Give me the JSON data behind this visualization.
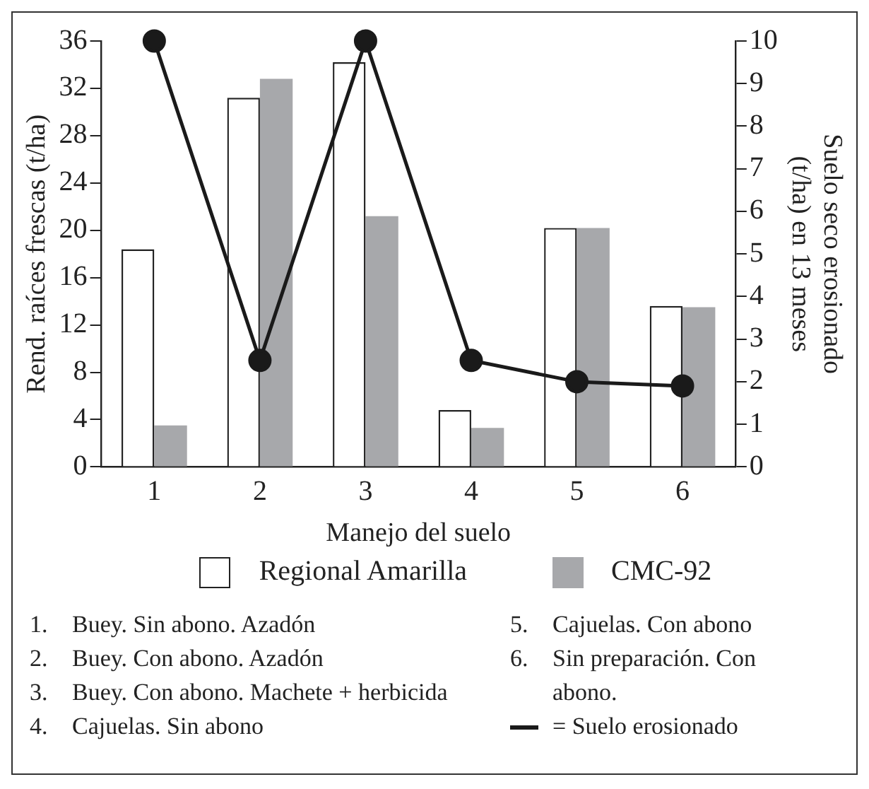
{
  "chart_data": {
    "type": "bar",
    "xlabel": "Manejo del suelo",
    "ylabel": "Rend. raíces frescas (t/ha)",
    "y2label": "Suelo seco erosionado\n(t/ha) en 13 meses",
    "categories": [
      "1",
      "2",
      "3",
      "4",
      "5",
      "6"
    ],
    "series": [
      {
        "name": "Regional Amarilla",
        "color": "#ffffff",
        "values": [
          18.4,
          31.2,
          34.2,
          4.8,
          20.2,
          13.6
        ]
      },
      {
        "name": "CMC-92",
        "color": "#a7a8ab",
        "values": [
          3.5,
          32.8,
          21.2,
          3.3,
          20.2,
          13.5
        ]
      },
      {
        "name": "= Suelo erosionado",
        "type": "line",
        "axis": "y2",
        "color": "#1a1a1a",
        "marker": "circle",
        "values": [
          10,
          2.5,
          10,
          2.5,
          2.0,
          1.9
        ]
      }
    ],
    "ylim": [
      0,
      36
    ],
    "yticks": [
      0,
      4,
      8,
      12,
      16,
      20,
      24,
      28,
      32,
      36
    ],
    "y2lim": [
      0,
      10
    ],
    "y2ticks": [
      0,
      1,
      2,
      3,
      4,
      5,
      6,
      7,
      8,
      9,
      10
    ],
    "grid": false,
    "legend": "bottom",
    "annotations": [
      "1. Buey. Sin abono. Azadón",
      "2. Buey. Con abono. Azadón",
      "3. Buey. Con abono. Machete + herbicida",
      "4. Cajuelas. Sin abono",
      "5. Cajuelas. Con abono",
      "6. Sin preparación. Con abono."
    ]
  }
}
